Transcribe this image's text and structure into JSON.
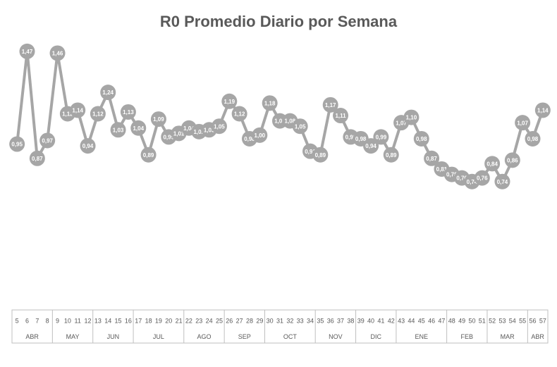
{
  "chart_data": {
    "type": "line",
    "title": "R0 Promedio Diario por Semana",
    "categories": [
      "5",
      "6",
      "7",
      "8",
      "9",
      "10",
      "11",
      "12",
      "13",
      "14",
      "15",
      "16",
      "17",
      "18",
      "19",
      "20",
      "21",
      "22",
      "23",
      "24",
      "25",
      "26",
      "27",
      "28",
      "29",
      "30",
      "31",
      "32",
      "33",
      "34",
      "35",
      "36",
      "37",
      "38",
      "39",
      "40",
      "41",
      "42",
      "43",
      "44",
      "45",
      "46",
      "47",
      "48",
      "49",
      "50",
      "51",
      "52",
      "53",
      "54",
      "55",
      "56",
      "57"
    ],
    "values": [
      0.95,
      1.47,
      0.87,
      0.97,
      1.46,
      1.12,
      1.14,
      0.94,
      1.12,
      1.24,
      1.03,
      1.13,
      1.04,
      0.89,
      1.09,
      0.99,
      1.01,
      1.04,
      1.02,
      1.03,
      1.05,
      1.19,
      1.12,
      0.98,
      1.0,
      1.18,
      1.08,
      1.08,
      1.05,
      0.91,
      0.89,
      1.17,
      1.11,
      0.99,
      0.98,
      0.94,
      0.99,
      0.89,
      1.07,
      1.1,
      0.98,
      0.87,
      0.81,
      0.78,
      0.76,
      0.74,
      0.76,
      0.84,
      0.74,
      0.86,
      1.07,
      0.98,
      1.14
    ],
    "value_labels": [
      "0,95",
      "1,47",
      "0,87",
      "0,97",
      "1,46",
      "1,12",
      "1,14",
      "0,94",
      "1,12",
      "1,24",
      "1,03",
      "1,13",
      "1,04",
      "0,89",
      "1,09",
      "0,99",
      "1,01",
      "1,04",
      "1,02",
      "1,03",
      "1,05",
      "1,19",
      "1,12",
      "0,98",
      "1,00",
      "1,18",
      "1,08",
      "1,08",
      "1,05",
      "0,91",
      "0,89",
      "1,17",
      "1,11",
      "0,99",
      "0,98",
      "0,94",
      "0,99",
      "0,89",
      "1,07",
      "1,10",
      "0,98",
      "0,87",
      "0,81",
      "0,78",
      "0,76",
      "0,74",
      "0,76",
      "0,84",
      "0,74",
      "0,86",
      "1,07",
      "0,98",
      "1,14"
    ],
    "groups": [
      {
        "label": "ABR",
        "span": 4
      },
      {
        "label": "MAY",
        "span": 4
      },
      {
        "label": "JUN",
        "span": 4
      },
      {
        "label": "JUL",
        "span": 5
      },
      {
        "label": "AGO",
        "span": 4
      },
      {
        "label": "SEP",
        "span": 4
      },
      {
        "label": "OCT",
        "span": 5
      },
      {
        "label": "NOV",
        "span": 4
      },
      {
        "label": "DIC",
        "span": 4
      },
      {
        "label": "ENE",
        "span": 5
      },
      {
        "label": "FEB",
        "span": 4
      },
      {
        "label": "MAR",
        "span": 4
      },
      {
        "label": "ABR",
        "span": 2
      }
    ],
    "color": "#a6a6a6",
    "ylim": [
      0,
      1.6
    ]
  }
}
